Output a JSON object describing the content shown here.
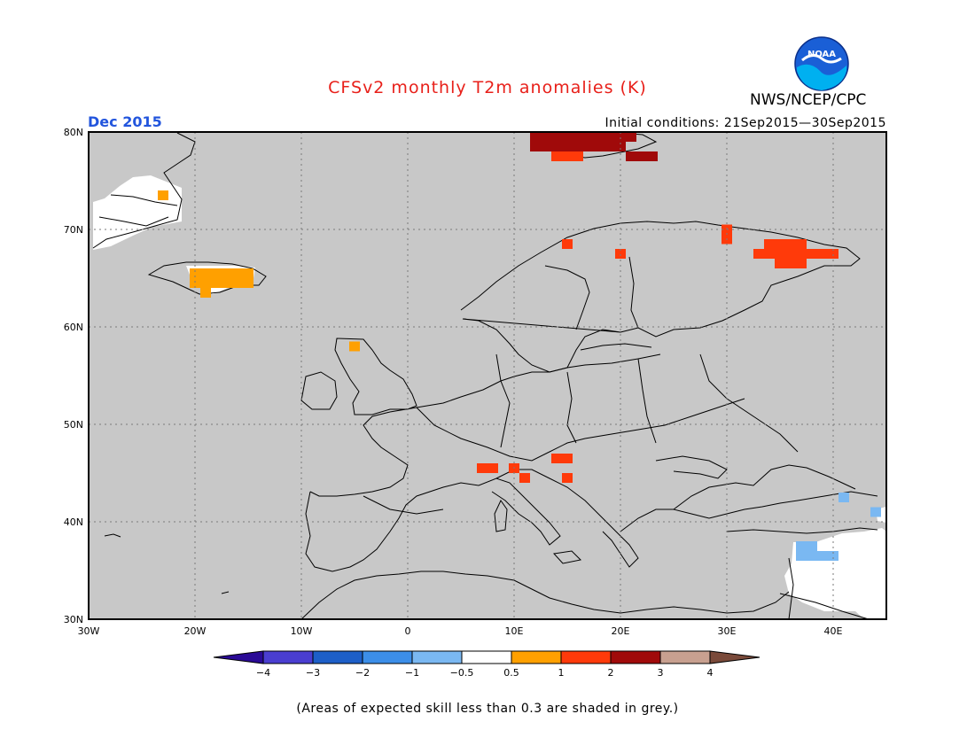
{
  "title": "CFSv2 monthly T2m anomalies (K)",
  "agency": "NWS/NCEP/CPC",
  "logo_text": "NOAA",
  "valid_month": "Dec 2015",
  "initial_conditions": "Initial conditions: 21Sep2015—30Sep2015",
  "footnote": "(Areas of expected skill less than 0.3 are shaded in grey.)",
  "map": {
    "lon_range": [
      -30,
      45
    ],
    "lat_range": [
      30,
      80
    ],
    "lat_ticks": [
      "30N",
      "40N",
      "50N",
      "60N",
      "70N",
      "80N"
    ],
    "lon_ticks": [
      "30W",
      "20W",
      "10W",
      "0",
      "10E",
      "20E",
      "30E",
      "40E"
    ],
    "background_color": "#c8c8c8"
  },
  "colorbar": {
    "labels": [
      "−4",
      "−3",
      "−2",
      "−1",
      "−0.5",
      "0.5",
      "1",
      "2",
      "3",
      "4"
    ],
    "colors": [
      "#2a0a96",
      "#4a3ed0",
      "#1d5fc8",
      "#3c8ee8",
      "#7ab8f2",
      "#ffffff",
      "#ffa000",
      "#ff3a0a",
      "#a00a0a",
      "#c8a090",
      "#7a4a3a"
    ]
  },
  "anomaly_cells": [
    {
      "lon": 12,
      "lat": 79.5,
      "level": "3"
    },
    {
      "lon": 13,
      "lat": 79.5,
      "level": "3"
    },
    {
      "lon": 14,
      "lat": 79.5,
      "level": "3"
    },
    {
      "lon": 15,
      "lat": 79.5,
      "level": "3"
    },
    {
      "lon": 16,
      "lat": 79.5,
      "level": "3"
    },
    {
      "lon": 17,
      "lat": 79.5,
      "level": "3"
    },
    {
      "lon": 18,
      "lat": 79.5,
      "level": "3"
    },
    {
      "lon": 19,
      "lat": 79.5,
      "level": "3"
    },
    {
      "lon": 20,
      "lat": 79.5,
      "level": "3"
    },
    {
      "lon": 21,
      "lat": 79.5,
      "level": "3"
    },
    {
      "lon": 12,
      "lat": 78.5,
      "level": "3"
    },
    {
      "lon": 13,
      "lat": 78.5,
      "level": "3"
    },
    {
      "lon": 14,
      "lat": 78.5,
      "level": "3"
    },
    {
      "lon": 15,
      "lat": 78.5,
      "level": "3"
    },
    {
      "lon": 16,
      "lat": 78.5,
      "level": "3"
    },
    {
      "lon": 17,
      "lat": 78.5,
      "level": "3"
    },
    {
      "lon": 18,
      "lat": 78.5,
      "level": "3"
    },
    {
      "lon": 19,
      "lat": 78.5,
      "level": "3"
    },
    {
      "lon": 20,
      "lat": 78.5,
      "level": "3"
    },
    {
      "lon": 14,
      "lat": 77.5,
      "level": "2"
    },
    {
      "lon": 15,
      "lat": 77.5,
      "level": "2"
    },
    {
      "lon": 16,
      "lat": 77.5,
      "level": "2"
    },
    {
      "lon": 21,
      "lat": 77.5,
      "level": "3"
    },
    {
      "lon": 22,
      "lat": 77.5,
      "level": "3"
    },
    {
      "lon": 23,
      "lat": 77.5,
      "level": "3"
    },
    {
      "lon": -23,
      "lat": 73.5,
      "level": "1"
    },
    {
      "lon": -20,
      "lat": 65.5,
      "level": "1"
    },
    {
      "lon": -19,
      "lat": 65.5,
      "level": "1"
    },
    {
      "lon": -18,
      "lat": 65.5,
      "level": "1"
    },
    {
      "lon": -17,
      "lat": 65.5,
      "level": "1"
    },
    {
      "lon": -16,
      "lat": 65.5,
      "level": "1"
    },
    {
      "lon": -15,
      "lat": 65.5,
      "level": "1"
    },
    {
      "lon": -20,
      "lat": 64.5,
      "level": "1"
    },
    {
      "lon": -19,
      "lat": 64.5,
      "level": "1"
    },
    {
      "lon": -18,
      "lat": 64.5,
      "level": "1"
    },
    {
      "lon": -17,
      "lat": 64.5,
      "level": "1"
    },
    {
      "lon": -16,
      "lat": 64.5,
      "level": "1"
    },
    {
      "lon": -15,
      "lat": 64.5,
      "level": "1"
    },
    {
      "lon": -19,
      "lat": 63.5,
      "level": "1"
    },
    {
      "lon": -5,
      "lat": 58,
      "level": "1"
    },
    {
      "lon": 15,
      "lat": 68.5,
      "level": "2"
    },
    {
      "lon": 20,
      "lat": 67.5,
      "level": "2"
    },
    {
      "lon": 30,
      "lat": 70,
      "level": "2"
    },
    {
      "lon": 30,
      "lat": 69,
      "level": "2"
    },
    {
      "lon": 34,
      "lat": 68.5,
      "level": "2"
    },
    {
      "lon": 35,
      "lat": 68.5,
      "level": "2"
    },
    {
      "lon": 36,
      "lat": 68.5,
      "level": "2"
    },
    {
      "lon": 37,
      "lat": 68.5,
      "level": "2"
    },
    {
      "lon": 33,
      "lat": 67.5,
      "level": "2"
    },
    {
      "lon": 34,
      "lat": 67.5,
      "level": "2"
    },
    {
      "lon": 35,
      "lat": 67.5,
      "level": "2"
    },
    {
      "lon": 36,
      "lat": 67.5,
      "level": "2"
    },
    {
      "lon": 37,
      "lat": 67.5,
      "level": "2"
    },
    {
      "lon": 38,
      "lat": 67.5,
      "level": "2"
    },
    {
      "lon": 39,
      "lat": 67.5,
      "level": "2"
    },
    {
      "lon": 40,
      "lat": 67.5,
      "level": "2"
    },
    {
      "lon": 35,
      "lat": 66.5,
      "level": "2"
    },
    {
      "lon": 36,
      "lat": 66.5,
      "level": "2"
    },
    {
      "lon": 37,
      "lat": 66.5,
      "level": "2"
    },
    {
      "lon": 7,
      "lat": 45.5,
      "level": "2"
    },
    {
      "lon": 8,
      "lat": 45.5,
      "level": "2"
    },
    {
      "lon": 10,
      "lat": 45.5,
      "level": "2"
    },
    {
      "lon": 11,
      "lat": 44.5,
      "level": "2"
    },
    {
      "lon": 14,
      "lat": 46.5,
      "level": "2"
    },
    {
      "lon": 15,
      "lat": 46.5,
      "level": "2"
    },
    {
      "lon": 15,
      "lat": 44.5,
      "level": "2"
    },
    {
      "lon": 41,
      "lat": 42.5,
      "level": "-1"
    },
    {
      "lon": 44,
      "lat": 41,
      "level": "-1"
    },
    {
      "lon": 37,
      "lat": 36.5,
      "level": "-1"
    },
    {
      "lon": 38,
      "lat": 36.5,
      "level": "-1"
    },
    {
      "lon": 39,
      "lat": 36.5,
      "level": "-1"
    },
    {
      "lon": 40,
      "lat": 36.5,
      "level": "-1"
    },
    {
      "lon": 37,
      "lat": 37.5,
      "level": "-0.5"
    },
    {
      "lon": 38,
      "lat": 37.5,
      "level": "-0.5"
    }
  ]
}
